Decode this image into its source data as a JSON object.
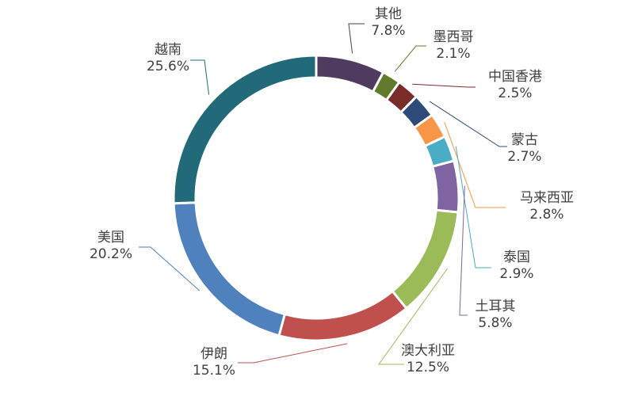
{
  "chart_data": {
    "type": "pie",
    "donut": true,
    "start_angle_deg": 0,
    "direction": "clockwise",
    "slices": [
      {
        "label": "其他",
        "value": 7.8,
        "value_label": "7.8%",
        "color": "#4F3B60"
      },
      {
        "label": "墨西哥",
        "value": 2.1,
        "value_label": "2.1%",
        "color": "#617A2C"
      },
      {
        "label": "中国香港",
        "value": 2.5,
        "value_label": "2.5%",
        "color": "#7A2C2A"
      },
      {
        "label": "蒙古",
        "value": 2.7,
        "value_label": "2.7%",
        "color": "#2E4A78"
      },
      {
        "label": "马来西亚",
        "value": 2.8,
        "value_label": "2.8%",
        "color": "#F79646"
      },
      {
        "label": "泰国",
        "value": 2.9,
        "value_label": "2.9%",
        "color": "#4BACC6"
      },
      {
        "label": "土耳其",
        "value": 5.8,
        "value_label": "5.8%",
        "color": "#8064A2"
      },
      {
        "label": "澳大利亚",
        "value": 12.5,
        "value_label": "12.5%",
        "color": "#9BBB59"
      },
      {
        "label": "伊朗",
        "value": 15.1,
        "value_label": "15.1%",
        "color": "#C0504D"
      },
      {
        "label": "美国",
        "value": 20.2,
        "value_label": "20.2%",
        "color": "#4F81BD"
      },
      {
        "label": "越南",
        "value": 25.6,
        "value_label": "25.6%",
        "color": "#226A7A"
      }
    ]
  }
}
